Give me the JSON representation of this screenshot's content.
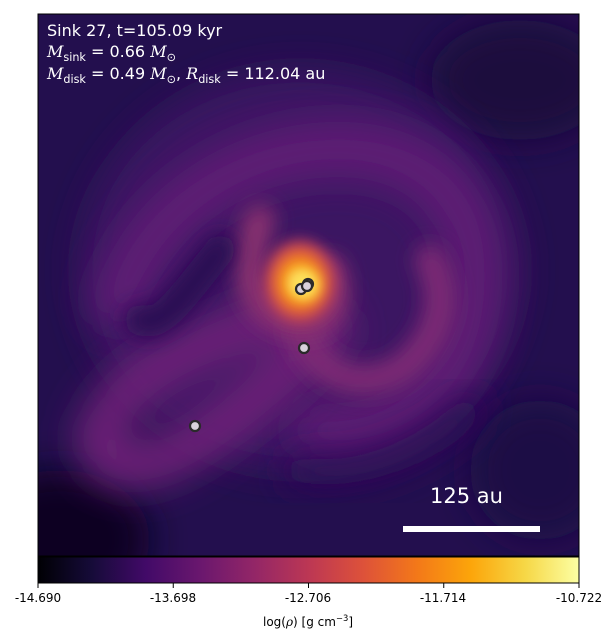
{
  "title_line": "Sink 27, t=105.09 kyr",
  "sink_mass": {
    "symbol": "M",
    "sub": "sink",
    "value": "0.66",
    "unit_sub": "⊙"
  },
  "disk_mass": {
    "symbol": "M",
    "sub": "disk",
    "value": "0.49",
    "unit_sub": "⊙"
  },
  "disk_radius": {
    "symbol": "R",
    "sub": "disk",
    "value": "112.04",
    "unit": "au"
  },
  "scale_bar_label": "125 au",
  "colorbar": {
    "colormap": "inferno",
    "min": -14.69,
    "max": -10.722,
    "tick_labels": [
      "-14.690",
      "-13.698",
      "-12.706",
      "-11.714",
      "-10.722"
    ],
    "label_prefix": "log(",
    "label_rho": "ρ",
    "label_mid": ") [g cm",
    "label_exp": "−3",
    "label_suffix": "]"
  },
  "sinks_visible": 5,
  "colors": {
    "background": "#1f0c45",
    "marker_fill": "#d9d2dc",
    "marker_edge": "#2a2a2a"
  }
}
